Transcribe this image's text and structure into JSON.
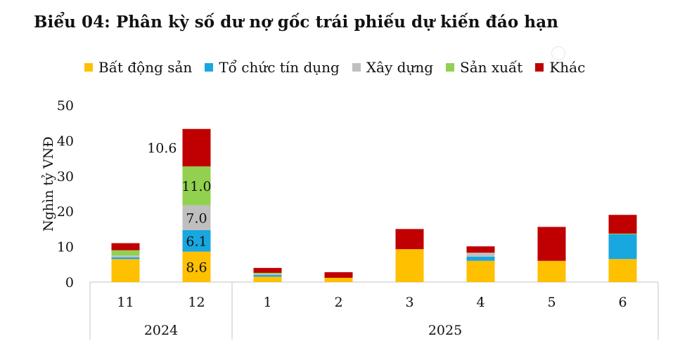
{
  "chart_data": {
    "type": "bar",
    "stacked": true,
    "title": "Biểu 04: Phân kỳ số dư nợ gốc trái phiếu dự kiến đáo hạn",
    "ylabel": "Nghìn tỷ VNĐ",
    "ylim": [
      0,
      50
    ],
    "yticks": [
      0,
      10,
      20,
      30,
      40,
      50
    ],
    "categories": [
      "11",
      "12",
      "1",
      "2",
      "3",
      "4",
      "5",
      "6"
    ],
    "year_groups": [
      {
        "label": "2024",
        "categories": [
          "11",
          "12"
        ]
      },
      {
        "label": "2025",
        "categories": [
          "1",
          "2",
          "3",
          "4",
          "5",
          "6"
        ]
      }
    ],
    "legend_position": "top",
    "grid": false,
    "series": [
      {
        "name": "Bất động sản",
        "color": "#FFC000",
        "values": [
          6.5,
          8.6,
          1.5,
          1.2,
          9.3,
          6.0,
          6.0,
          6.5
        ]
      },
      {
        "name": "Tổ chức tín dụng",
        "color": "#19A7E0",
        "values": [
          0.5,
          6.1,
          0.5,
          0,
          0,
          1.2,
          0,
          7.0
        ]
      },
      {
        "name": "Xây dựng",
        "color": "#BFBFBF",
        "values": [
          0.5,
          7.0,
          0.3,
          0,
          0,
          1.1,
          0,
          0
        ]
      },
      {
        "name": "Sản xuất",
        "color": "#92D050",
        "values": [
          1.5,
          11.0,
          0.3,
          0,
          0,
          0,
          0,
          0.2
        ]
      },
      {
        "name": "Khác",
        "color": "#C00000",
        "values": [
          2.0,
          10.6,
          1.4,
          1.6,
          5.7,
          1.8,
          9.6,
          5.3
        ]
      }
    ],
    "data_labels": [
      {
        "category": "12",
        "series": "Bất động sản",
        "text": "8.6"
      },
      {
        "category": "12",
        "series": "Tổ chức tín dụng",
        "text": "6.1"
      },
      {
        "category": "12",
        "series": "Xây dựng",
        "text": "7.0"
      },
      {
        "category": "12",
        "series": "Sản xuất",
        "text": "11.0"
      },
      {
        "category": "12",
        "series": "Khác",
        "text": "10.6",
        "position": "left"
      }
    ]
  }
}
